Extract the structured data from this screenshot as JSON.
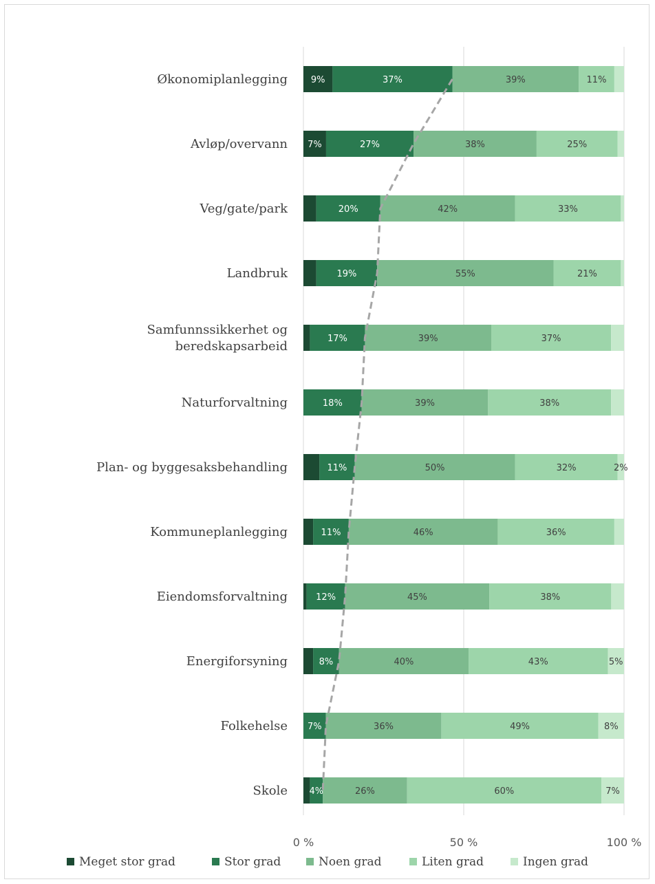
{
  "chart_data": {
    "type": "bar",
    "orientation": "horizontal",
    "stacked": true,
    "percent": true,
    "categories": [
      "Økonomiplanlegging",
      "Avløp/overvann",
      "Veg/gate/park",
      "Landbruk",
      "Samfunnssikkerhet og beredskapsarbeid",
      "Naturforvaltning",
      "Plan- og byggesaksbehandling",
      "Kommuneplanlegging",
      "Eiendomsforvaltning",
      "Energiforsyning",
      "Folkehelse",
      "Skole"
    ],
    "series": [
      {
        "name": "Meget stor grad",
        "color": "#1c4a33",
        "label_color": "#ffffff",
        "values": [
          9,
          7,
          4,
          4,
          2,
          0,
          5,
          3,
          1,
          3,
          0,
          2
        ],
        "labels": [
          "9%",
          "7%",
          "",
          "",
          "",
          "",
          "",
          "",
          "",
          "",
          "",
          ""
        ]
      },
      {
        "name": "Stor grad",
        "color": "#2a7a50",
        "label_color": "#ffffff",
        "values": [
          37,
          27,
          20,
          19,
          17,
          18,
          11,
          11,
          12,
          8,
          7,
          4
        ],
        "labels": [
          "37%",
          "27%",
          "20%",
          "19%",
          "17%",
          "18%",
          "11%",
          "11%",
          "12%",
          "8%",
          "7%",
          "4%"
        ]
      },
      {
        "name": "Noen grad",
        "color": "#7dba8e",
        "label_color": "#404040",
        "values": [
          39,
          38,
          42,
          55,
          39,
          39,
          50,
          46,
          45,
          40,
          36,
          26
        ],
        "labels": [
          "39%",
          "38%",
          "42%",
          "55%",
          "39%",
          "39%",
          "50%",
          "46%",
          "45%",
          "40%",
          "36%",
          "26%"
        ]
      },
      {
        "name": "Liten grad",
        "color": "#9dd5aa",
        "label_color": "#404040",
        "values": [
          11,
          25,
          33,
          21,
          37,
          38,
          32,
          36,
          38,
          43,
          49,
          60
        ],
        "labels": [
          "11%",
          "25%",
          "33%",
          "21%",
          "37%",
          "38%",
          "32%",
          "36%",
          "38%",
          "43%",
          "49%",
          "60%"
        ]
      },
      {
        "name": "Ingen grad",
        "color": "#c6e9cc",
        "label_color": "#404040",
        "values": [
          3,
          2,
          1,
          1,
          4,
          4,
          2,
          3,
          4,
          5,
          8,
          7
        ],
        "labels": [
          "",
          "",
          "",
          "",
          "",
          "",
          "2%",
          "",
          "",
          "5%",
          "8%",
          "7%"
        ]
      }
    ],
    "xlim": [
      0,
      100
    ],
    "x_ticks": [
      "0 %",
      "50 %",
      "100 %"
    ],
    "grid": true,
    "legend": "bottom",
    "cumulative_line": {
      "style": "dashed",
      "color": "#a6a6a6",
      "series_summed": [
        "Meget stor grad",
        "Stor grad"
      ]
    }
  }
}
